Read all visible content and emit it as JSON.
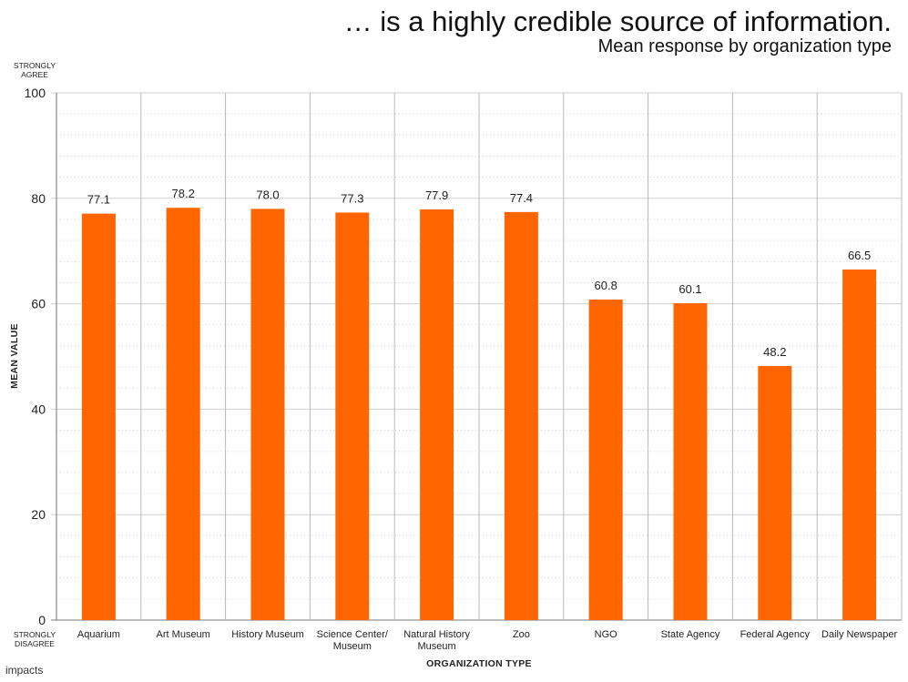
{
  "header": {
    "title": "… is a highly credible source of information.",
    "subtitle": "Mean response by organization type"
  },
  "scale_labels": {
    "top": [
      "STRONGLY",
      "AGREE"
    ],
    "bottom": [
      "STRONGLY",
      "DISAGREE"
    ]
  },
  "footer": {
    "logo_text": "impacts"
  },
  "chart_data": {
    "type": "bar",
    "title": "… is a highly credible source of information.",
    "subtitle": "Mean response by organization type",
    "xlabel": "ORGANIZATION TYPE",
    "ylabel": "MEAN VALUE",
    "ylim": [
      0,
      100
    ],
    "yticks": [
      0,
      20,
      40,
      60,
      80,
      100
    ],
    "grid": true,
    "categories": [
      [
        "Aquarium"
      ],
      [
        "Art Museum"
      ],
      [
        "History Museum"
      ],
      [
        "Science Center/",
        "Museum"
      ],
      [
        "Natural History",
        "Museum"
      ],
      [
        "Zoo"
      ],
      [
        "NGO"
      ],
      [
        "State Agency"
      ],
      [
        "Federal Agency"
      ],
      [
        "Daily Newspaper"
      ]
    ],
    "values": [
      77.1,
      78.2,
      78.0,
      77.3,
      77.9,
      77.4,
      60.8,
      60.1,
      48.2,
      66.5
    ],
    "data_labels": [
      "77.1",
      "78.2",
      "78.0",
      "77.3",
      "77.9",
      "77.4",
      "60.8",
      "60.1",
      "48.2",
      "66.5"
    ],
    "bar_color": "#ff6600",
    "grid_color": "#d0d0d0"
  }
}
